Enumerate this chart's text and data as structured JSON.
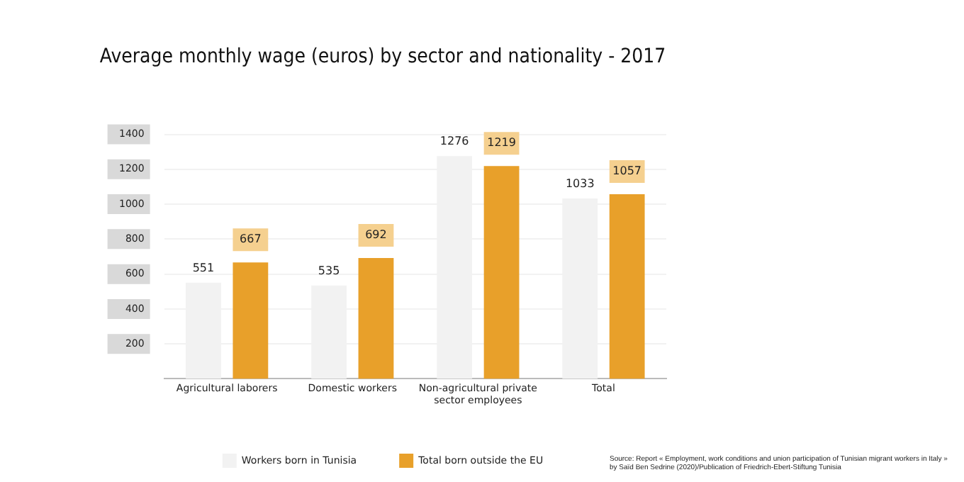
{
  "chart_data": {
    "type": "bar",
    "title": "Average monthly wage (euros) by sector and nationality - 2017",
    "categories": [
      "Agricultural laborers",
      "Domestic workers",
      "Non-agricultural private sector employees",
      "Total"
    ],
    "series": [
      {
        "name": "Workers born in Tunisia",
        "color": "#f2f2f2",
        "values": [
          551,
          535,
          1276,
          1033
        ]
      },
      {
        "name": "Total born outside the EU",
        "color": "#e8a02a",
        "values": [
          667,
          692,
          1219,
          1057
        ]
      }
    ],
    "ylim": [
      0,
      1400
    ],
    "yticks": [
      200,
      400,
      600,
      800,
      1000,
      1200,
      1400
    ],
    "grid": "y",
    "legend": "bottom",
    "data_labels": true,
    "annotations": [
      "Source: Report « Employment, work conditions and union participation of Tunisian migrant workers in Italy » by Saïd Ben Sedrine (2020)/Publication of Friedrich-Ebert-Stiftung Tunisia"
    ]
  }
}
